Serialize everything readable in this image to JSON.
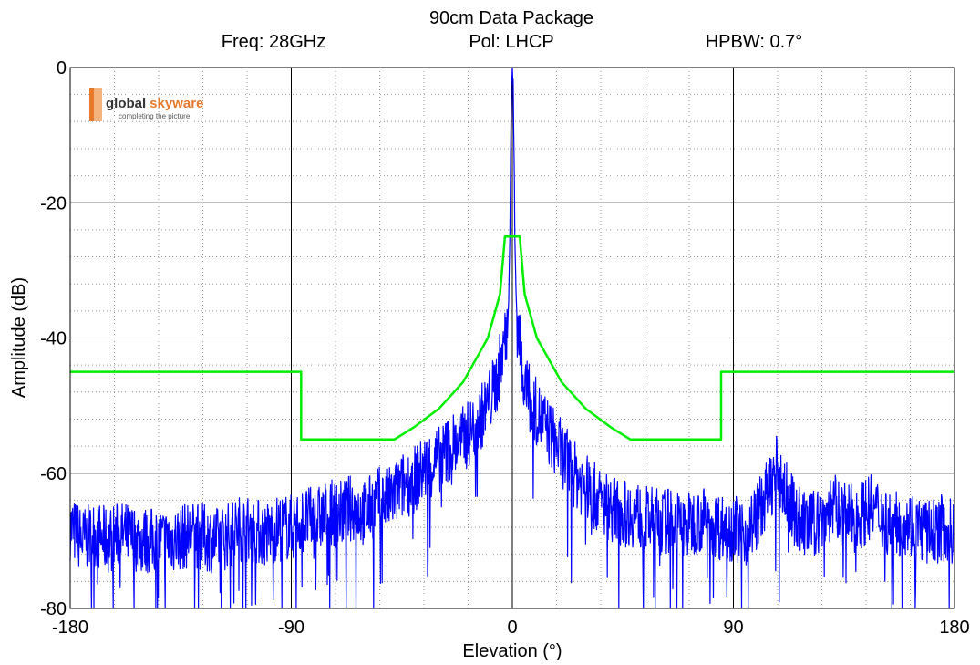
{
  "title": "90cm Data Package",
  "info": {
    "freq": "Freq: 28GHz",
    "pol": "Pol: LHCP",
    "hpbw": "HPBW: 0.7°"
  },
  "logo": {
    "word1": "global",
    "word2": "skyware",
    "tagline": "completing the picture"
  },
  "colors": {
    "pattern": "#0000ff",
    "mask": "#00ee00",
    "grid_major": "#000000",
    "grid_minor": "#999999",
    "logo_orange": "#e8792b"
  },
  "chart_data": {
    "type": "line",
    "title": "90cm Data Package",
    "xlabel": "Elevation (°)",
    "ylabel": "Amplitude (dB)",
    "xlim": [
      -180,
      180
    ],
    "ylim": [
      -80,
      0
    ],
    "x_ticks": [
      -180,
      -90,
      0,
      90,
      180
    ],
    "y_ticks": [
      0,
      -20,
      -40,
      -60,
      -80
    ],
    "x_tick_labels": [
      "-180",
      "-90",
      "0",
      "90",
      "180"
    ],
    "y_tick_labels": [
      "0",
      "-20",
      "-40",
      "-60",
      "-80"
    ],
    "grid": true,
    "legend": "none",
    "series": [
      {
        "role": "measured pattern",
        "color": "#0000ff",
        "x": [
          -180,
          -175,
          -170,
          -165,
          -160,
          -150,
          -140,
          -130,
          -120,
          -110,
          -100,
          -95,
          -90,
          -85,
          -80,
          -75,
          -70,
          -65,
          -60,
          -55,
          -50,
          -45,
          -40,
          -35,
          -30,
          -25,
          -20,
          -15,
          -10,
          -8,
          -6,
          -4,
          -3,
          -2,
          -1.5,
          -1,
          -0.7,
          -0.35,
          0,
          0.35,
          0.7,
          1,
          1.5,
          2,
          3,
          4,
          6,
          8,
          10,
          15,
          20,
          25,
          30,
          35,
          40,
          45,
          50,
          55,
          60,
          65,
          70,
          75,
          80,
          85,
          90,
          95,
          100,
          105,
          108,
          110,
          115,
          120,
          125,
          130,
          135,
          140,
          145,
          150,
          155,
          160,
          165,
          170,
          175,
          180
        ],
        "y": [
          -68,
          -70,
          -69,
          -70,
          -69,
          -70,
          -70,
          -69,
          -70,
          -68,
          -69,
          -68,
          -68,
          -67,
          -67,
          -66,
          -66,
          -65,
          -66,
          -64,
          -64,
          -62,
          -61,
          -59,
          -58,
          -56,
          -55,
          -53,
          -50,
          -48,
          -46,
          -42,
          -40,
          -38,
          -33,
          -25,
          -12,
          -3,
          0,
          -3,
          -12,
          -25,
          -33,
          -38,
          -40,
          -44,
          -48,
          -50,
          -51,
          -54,
          -57,
          -60,
          -62,
          -64,
          -65,
          -66,
          -66,
          -67,
          -67,
          -67,
          -68,
          -67,
          -67,
          -68,
          -68,
          -69,
          -66,
          -62,
          -59,
          -62,
          -66,
          -68,
          -67,
          -65,
          -66,
          -67,
          -65,
          -66,
          -68,
          -67,
          -68,
          -69,
          -68,
          -69
        ]
      },
      {
        "role": "mask",
        "color": "#00ee00",
        "x": [
          -180,
          -86,
          -86,
          -48,
          -40,
          -30,
          -20,
          -10,
          -5,
          -3,
          3,
          5,
          10,
          20,
          30,
          40,
          48,
          85,
          85,
          180
        ],
        "y": [
          -45,
          -45,
          -55,
          -55,
          -53.2,
          -50.5,
          -46.5,
          -40,
          -33.5,
          -25,
          -25,
          -33.5,
          -40,
          -46.5,
          -50.5,
          -53.2,
          -55,
          -55,
          -45,
          -45
        ]
      }
    ]
  }
}
